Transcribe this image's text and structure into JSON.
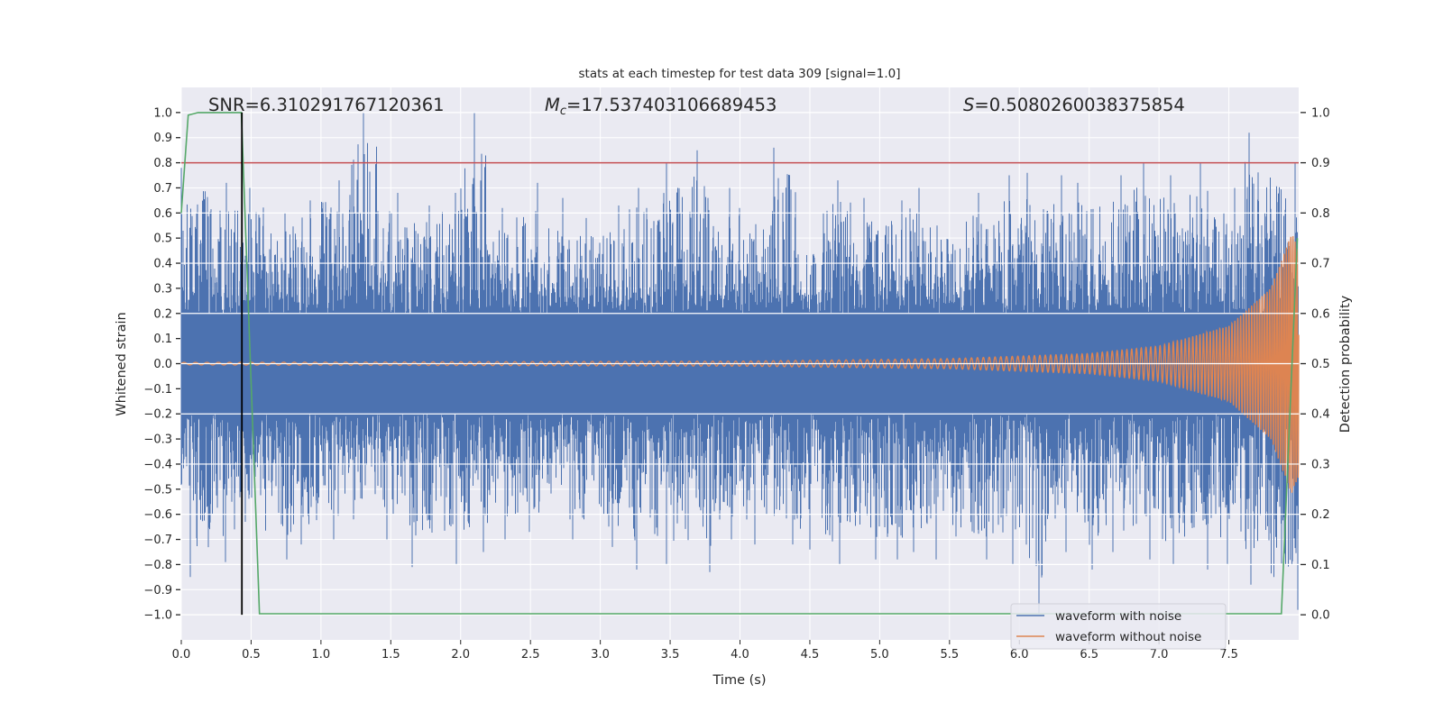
{
  "chart_data": {
    "type": "line",
    "title": "stats at each timestep for test data 309 [signal=1.0]",
    "xlabel": "Time (s)",
    "ylabel": "Whitened strain",
    "ylabel_right": "Detection probability",
    "xlim": [
      0,
      8.0
    ],
    "ylim": [
      -1.1,
      1.1
    ],
    "ylim_right": [
      -0.05,
      1.05
    ],
    "grid": true,
    "legend_placement": "lower-right",
    "x_ticks": [
      "0.0",
      "0.5",
      "1.0",
      "1.5",
      "2.0",
      "2.5",
      "3.0",
      "3.5",
      "4.0",
      "4.5",
      "5.0",
      "5.5",
      "6.0",
      "6.5",
      "7.0",
      "7.5"
    ],
    "y_ticks": [
      "−1.0",
      "−0.9",
      "−0.8",
      "−0.7",
      "−0.6",
      "−0.5",
      "−0.4",
      "−0.3",
      "−0.2",
      "−0.1",
      "0.0",
      "0.1",
      "0.2",
      "0.3",
      "0.4",
      "0.5",
      "0.6",
      "0.7",
      "0.8",
      "0.9",
      "1.0"
    ],
    "y_ticks_right": [
      "0.0",
      "0.1",
      "0.2",
      "0.3",
      "0.4",
      "0.5",
      "0.6",
      "0.7",
      "0.8",
      "0.9",
      "1.0"
    ],
    "annotations": {
      "snr": "SNR=6.310291767120361",
      "mc_symbol": "M",
      "mc_subscript": "c",
      "mc_value": "=17.537403106689453",
      "s_symbol": "S",
      "s_value": "=0.5080260038375854"
    },
    "series": [
      {
        "name": "waveform with noise",
        "color": "#4c72b0",
        "axis": "left",
        "bin_width_s": 0.2,
        "bin_max": [
          0.78,
          0.72,
          0.7,
          0.6,
          0.65,
          0.73,
          1.0,
          0.68,
          0.63,
          0.68,
          1.0,
          0.62,
          0.72,
          0.66,
          0.58,
          0.63,
          0.7,
          0.8,
          0.85,
          0.7,
          0.62,
          0.86,
          0.6,
          0.73,
          0.66,
          0.65,
          0.7,
          0.55,
          0.68,
          0.75,
          0.76,
          0.75,
          0.72,
          0.75,
          0.8,
          0.75,
          0.8,
          0.7,
          0.92,
          0.8
        ],
        "bin_min": [
          -0.85,
          -0.79,
          -0.63,
          -0.78,
          -0.72,
          -0.7,
          -0.62,
          -0.7,
          -0.81,
          -0.8,
          -0.75,
          -0.7,
          -0.67,
          -0.62,
          -0.7,
          -0.73,
          -0.82,
          -0.8,
          -0.83,
          -0.7,
          -0.72,
          -0.72,
          -0.74,
          -0.8,
          -0.78,
          -0.78,
          -0.75,
          -0.78,
          -0.78,
          -0.8,
          -1.0,
          -0.75,
          -0.82,
          -0.75,
          -0.78,
          -0.8,
          -0.82,
          -0.8,
          -0.88,
          -0.98
        ]
      },
      {
        "name": "waveform without noise",
        "color": "#dd8452",
        "axis": "left",
        "amplitude_t": [
          0,
          4.0,
          5.5,
          6.5,
          7.0,
          7.5,
          7.8,
          7.95,
          8.0
        ],
        "amplitude": [
          0.005,
          0.01,
          0.02,
          0.04,
          0.07,
          0.15,
          0.3,
          0.52,
          0.45
        ],
        "frequency_t": [
          0,
          5.0,
          7.0,
          7.9,
          8.0
        ],
        "frequency_hz": [
          12,
          20,
          30,
          60,
          70
        ]
      },
      {
        "name": "detection probability",
        "color": "#55a868",
        "axis": "right",
        "x": [
          0,
          0.05,
          0.12,
          0.43,
          0.56,
          1.5,
          7.876,
          7.99
        ],
        "y": [
          0.8,
          0.995,
          1.0,
          1.0,
          0.002,
          0.002,
          0.002,
          0.75
        ]
      }
    ],
    "threshold": {
      "value_right": 0.9,
      "color": "#c44e52"
    },
    "marker_time": {
      "x": 0.434,
      "color": "#000000"
    }
  }
}
